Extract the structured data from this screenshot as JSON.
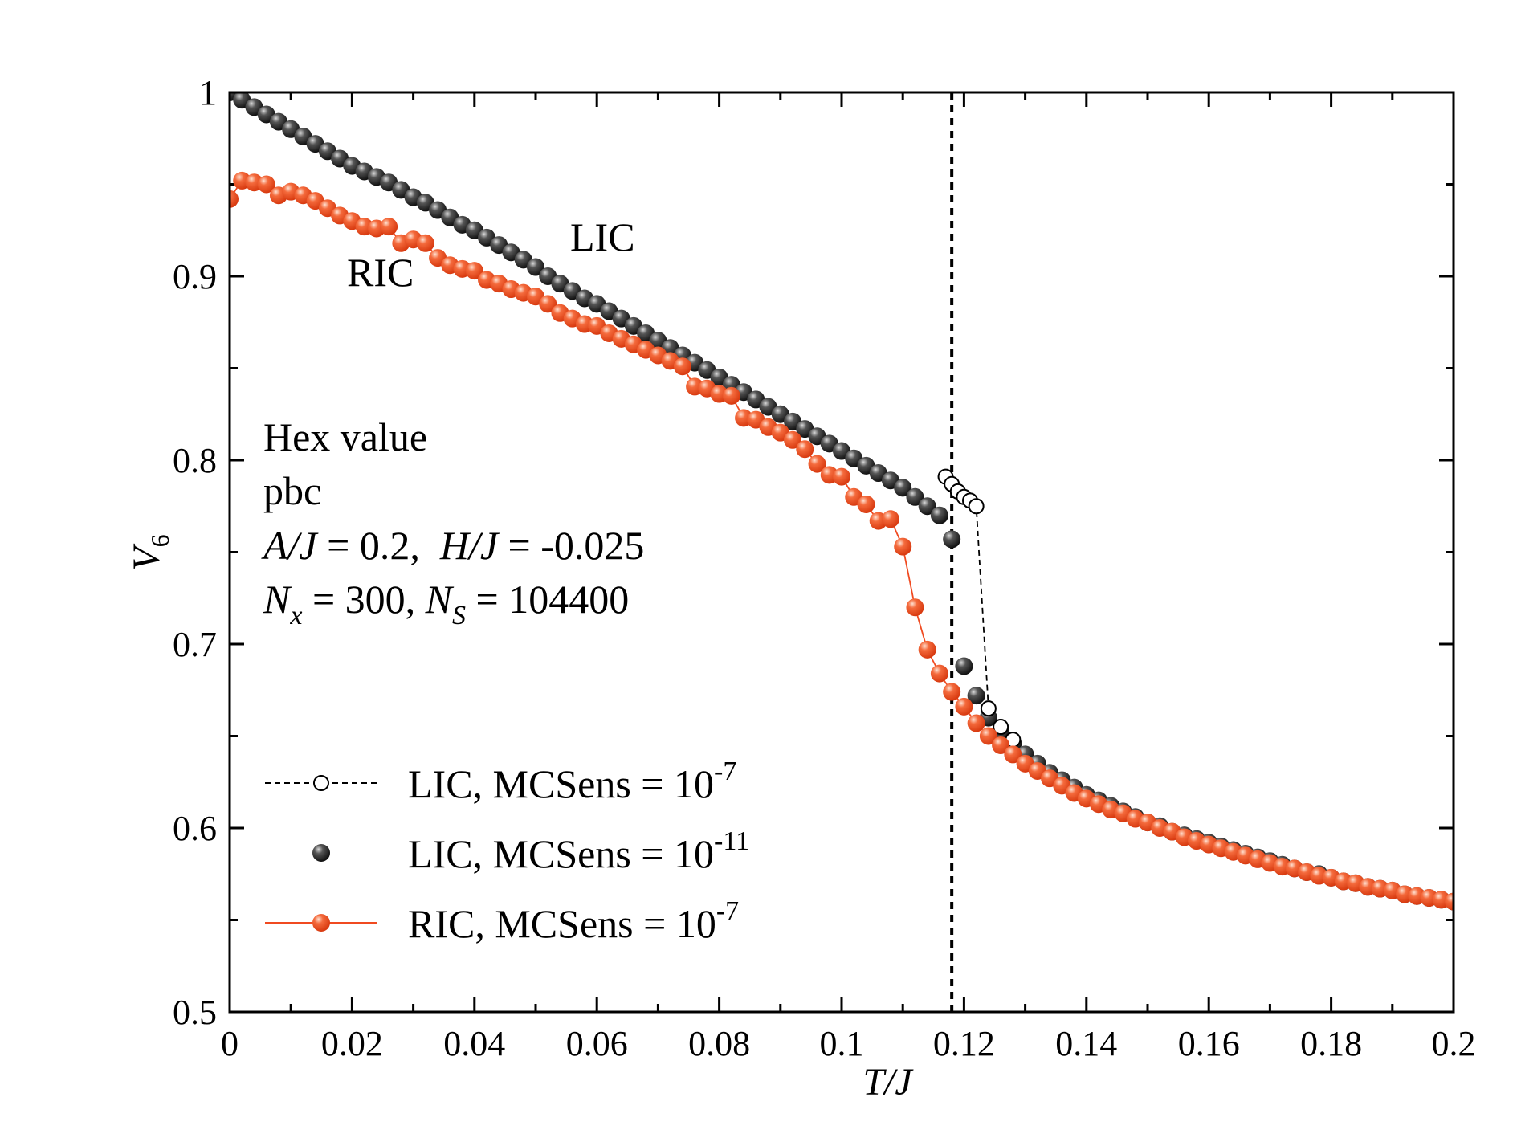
{
  "chart_data": {
    "type": "scatter",
    "xlabel": "T/J",
    "ylabel": "V",
    "ylabel_sub": "6",
    "xlim": [
      0,
      0.2
    ],
    "ylim": [
      0.5,
      1.0
    ],
    "x_ticks": [
      "0",
      "0.02",
      "0.04",
      "0.06",
      "0.08",
      "0.1",
      "0.12",
      "0.14",
      "0.16",
      "0.18",
      "0.2"
    ],
    "y_ticks": [
      "0.5",
      "0.6",
      "0.7",
      "0.8",
      "0.9",
      "1"
    ],
    "grid": false,
    "vline_x": 0.118,
    "annotations": {
      "lic": "LIC",
      "ric": "RIC",
      "line1": "Hex value",
      "line2": "pbc",
      "line3_a": "A/J",
      "line3_b": " = 0.2,  ",
      "line3_c": "H/J",
      "line3_d": " = -0.025",
      "line4_n1": "N",
      "line4_sub1": "x",
      "line4_mid": " = 300, ",
      "line4_n2": "N",
      "line4_sub2": "S",
      "line4_end": " = 104400"
    },
    "legend": [
      {
        "base": "LIC, MCSens = 10",
        "exp": "-7"
      },
      {
        "base": "LIC, MCSens = 10",
        "exp": "-11"
      },
      {
        "base": "RIC, MCSens = 10",
        "exp": "-7"
      }
    ],
    "colors": {
      "black_marker": "#2a2a2a",
      "red_marker": "#f04a20",
      "red_line": "#f04a20"
    },
    "series": [
      {
        "x": [
          0.117,
          0.118,
          0.119,
          0.12,
          0.121,
          0.122,
          0.124,
          0.126,
          0.128
        ],
        "y": [
          0.791,
          0.787,
          0.783,
          0.78,
          0.778,
          0.775,
          0.665,
          0.655,
          0.648
        ]
      },
      {
        "x": [
          0.0,
          0.002,
          0.004,
          0.006,
          0.008,
          0.01,
          0.012,
          0.014,
          0.016,
          0.018,
          0.02,
          0.022,
          0.024,
          0.026,
          0.028,
          0.03,
          0.032,
          0.034,
          0.036,
          0.038,
          0.04,
          0.042,
          0.044,
          0.046,
          0.048,
          0.05,
          0.052,
          0.054,
          0.056,
          0.058,
          0.06,
          0.062,
          0.064,
          0.066,
          0.068,
          0.07,
          0.072,
          0.074,
          0.076,
          0.078,
          0.08,
          0.082,
          0.084,
          0.086,
          0.088,
          0.09,
          0.092,
          0.094,
          0.096,
          0.098,
          0.1,
          0.102,
          0.104,
          0.106,
          0.108,
          0.11,
          0.112,
          0.114,
          0.116,
          0.118,
          0.12,
          0.122,
          0.124,
          0.126,
          0.128,
          0.13,
          0.132,
          0.134,
          0.136,
          0.138,
          0.14,
          0.142,
          0.144,
          0.146,
          0.148,
          0.15,
          0.152,
          0.154,
          0.156,
          0.158,
          0.16,
          0.162,
          0.164,
          0.166,
          0.168,
          0.17,
          0.172,
          0.174,
          0.176,
          0.178,
          0.18,
          0.182,
          0.184,
          0.186,
          0.188,
          0.19,
          0.192,
          0.194,
          0.196,
          0.198,
          0.2
        ],
        "y": [
          1.0,
          0.996,
          0.992,
          0.988,
          0.984,
          0.98,
          0.976,
          0.972,
          0.968,
          0.964,
          0.96,
          0.957,
          0.954,
          0.951,
          0.947,
          0.943,
          0.94,
          0.936,
          0.932,
          0.928,
          0.925,
          0.921,
          0.917,
          0.913,
          0.909,
          0.905,
          0.9,
          0.896,
          0.892,
          0.888,
          0.885,
          0.881,
          0.877,
          0.873,
          0.869,
          0.865,
          0.861,
          0.857,
          0.853,
          0.849,
          0.845,
          0.841,
          0.837,
          0.833,
          0.829,
          0.825,
          0.821,
          0.817,
          0.813,
          0.809,
          0.805,
          0.801,
          0.797,
          0.793,
          0.789,
          0.785,
          0.78,
          0.775,
          0.77,
          0.757,
          0.688,
          0.672,
          0.66,
          0.652,
          0.646,
          0.64,
          0.635,
          0.63,
          0.626,
          0.622,
          0.618,
          0.615,
          0.612,
          0.609,
          0.606,
          0.603,
          0.601,
          0.598,
          0.596,
          0.594,
          0.592,
          0.59,
          0.588,
          0.586,
          0.584,
          0.582,
          0.58,
          0.578,
          0.576,
          0.575,
          0.573,
          0.571,
          0.57,
          0.568,
          0.567,
          0.566,
          0.564,
          0.563,
          0.562,
          0.561,
          0.56
        ]
      },
      {
        "x": [
          0.0,
          0.002,
          0.004,
          0.006,
          0.008,
          0.01,
          0.012,
          0.014,
          0.016,
          0.018,
          0.02,
          0.022,
          0.024,
          0.026,
          0.028,
          0.03,
          0.032,
          0.034,
          0.036,
          0.038,
          0.04,
          0.042,
          0.044,
          0.046,
          0.048,
          0.05,
          0.052,
          0.054,
          0.056,
          0.058,
          0.06,
          0.062,
          0.064,
          0.066,
          0.068,
          0.07,
          0.072,
          0.074,
          0.076,
          0.078,
          0.08,
          0.082,
          0.084,
          0.086,
          0.088,
          0.09,
          0.092,
          0.094,
          0.096,
          0.098,
          0.1,
          0.102,
          0.104,
          0.106,
          0.108,
          0.11,
          0.112,
          0.114,
          0.116,
          0.118,
          0.12,
          0.122,
          0.124,
          0.126,
          0.128,
          0.13,
          0.132,
          0.134,
          0.136,
          0.138,
          0.14,
          0.142,
          0.144,
          0.146,
          0.148,
          0.15,
          0.152,
          0.154,
          0.156,
          0.158,
          0.16,
          0.162,
          0.164,
          0.166,
          0.168,
          0.17,
          0.172,
          0.174,
          0.176,
          0.178,
          0.18,
          0.182,
          0.184,
          0.186,
          0.188,
          0.19,
          0.192,
          0.194,
          0.196,
          0.198,
          0.2
        ],
        "y": [
          0.942,
          0.952,
          0.951,
          0.95,
          0.944,
          0.946,
          0.944,
          0.941,
          0.937,
          0.933,
          0.93,
          0.927,
          0.926,
          0.927,
          0.918,
          0.92,
          0.918,
          0.91,
          0.906,
          0.904,
          0.903,
          0.898,
          0.896,
          0.893,
          0.891,
          0.889,
          0.885,
          0.88,
          0.877,
          0.874,
          0.873,
          0.869,
          0.866,
          0.863,
          0.86,
          0.857,
          0.854,
          0.851,
          0.84,
          0.839,
          0.836,
          0.835,
          0.823,
          0.822,
          0.818,
          0.815,
          0.811,
          0.806,
          0.798,
          0.792,
          0.791,
          0.78,
          0.776,
          0.767,
          0.768,
          0.753,
          0.72,
          0.697,
          0.684,
          0.674,
          0.666,
          0.657,
          0.65,
          0.645,
          0.64,
          0.635,
          0.631,
          0.627,
          0.623,
          0.619,
          0.616,
          0.613,
          0.61,
          0.608,
          0.605,
          0.603,
          0.6,
          0.598,
          0.595,
          0.593,
          0.591,
          0.589,
          0.587,
          0.585,
          0.583,
          0.581,
          0.579,
          0.578,
          0.576,
          0.574,
          0.573,
          0.571,
          0.57,
          0.568,
          0.567,
          0.566,
          0.564,
          0.563,
          0.562,
          0.561,
          0.56
        ]
      }
    ]
  }
}
